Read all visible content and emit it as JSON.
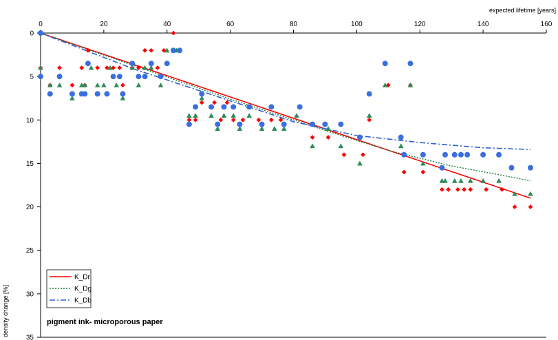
{
  "chart_data": {
    "type": "scatter",
    "title": "pigment ink- microporous paper",
    "xlabel": "expected lifetime [years]",
    "ylabel": "density change [%]",
    "xlim": [
      0,
      160
    ],
    "ylim": [
      0,
      35
    ],
    "y_inverted": true,
    "x_ticks": [
      0,
      20,
      40,
      60,
      80,
      100,
      120,
      140,
      160
    ],
    "y_ticks": [
      0,
      5,
      10,
      15,
      20,
      25,
      30,
      35
    ],
    "x_axis_position": "top",
    "grid": false,
    "legend_position": "bottom-left",
    "series": [
      {
        "name": "K_Dr",
        "marker": "diamond",
        "color": "#ff0000",
        "points": [
          [
            0,
            0
          ],
          [
            0,
            4
          ],
          [
            3,
            6
          ],
          [
            6,
            4
          ],
          [
            10,
            6
          ],
          [
            13,
            4
          ],
          [
            14,
            6
          ],
          [
            15,
            2
          ],
          [
            18,
            4
          ],
          [
            21,
            4
          ],
          [
            23,
            4
          ],
          [
            25,
            4
          ],
          [
            26,
            6
          ],
          [
            29,
            4
          ],
          [
            31,
            4
          ],
          [
            33,
            2
          ],
          [
            35,
            2
          ],
          [
            37,
            4
          ],
          [
            39,
            2
          ],
          [
            42,
            0
          ],
          [
            47,
            10
          ],
          [
            49,
            10
          ],
          [
            51,
            8
          ],
          [
            55,
            8
          ],
          [
            57,
            10
          ],
          [
            59,
            8
          ],
          [
            61,
            10
          ],
          [
            64,
            10
          ],
          [
            69,
            10
          ],
          [
            73,
            10
          ],
          [
            76,
            10
          ],
          [
            86,
            12
          ],
          [
            91,
            12
          ],
          [
            96,
            14
          ],
          [
            102,
            14
          ],
          [
            104,
            10
          ],
          [
            110,
            6
          ],
          [
            115,
            16
          ],
          [
            117,
            6
          ],
          [
            121,
            16
          ],
          [
            127,
            18
          ],
          [
            129,
            18
          ],
          [
            132,
            18
          ],
          [
            134,
            18
          ],
          [
            136,
            18
          ],
          [
            141,
            18
          ],
          [
            146,
            18
          ],
          [
            150,
            20
          ],
          [
            155,
            20
          ]
        ]
      },
      {
        "name": "K_Dg",
        "marker": "triangle",
        "color": "#2e8b57",
        "points": [
          [
            0,
            4
          ],
          [
            3,
            6
          ],
          [
            6,
            6
          ],
          [
            10,
            7.5
          ],
          [
            13,
            6
          ],
          [
            14,
            6
          ],
          [
            16,
            4
          ],
          [
            18,
            6
          ],
          [
            20,
            6
          ],
          [
            22,
            4
          ],
          [
            24,
            6
          ],
          [
            26,
            7.5
          ],
          [
            29,
            4
          ],
          [
            31,
            6
          ],
          [
            33,
            4
          ],
          [
            35,
            4
          ],
          [
            38,
            6
          ],
          [
            40,
            2
          ],
          [
            43,
            2
          ],
          [
            47,
            9.5
          ],
          [
            49,
            9.5
          ],
          [
            51,
            7.5
          ],
          [
            54,
            9.5
          ],
          [
            56,
            11
          ],
          [
            58,
            9.5
          ],
          [
            61,
            9.5
          ],
          [
            63,
            11
          ],
          [
            66,
            9.5
          ],
          [
            70,
            11
          ],
          [
            74,
            11
          ],
          [
            77,
            11
          ],
          [
            81,
            9.5
          ],
          [
            86,
            13
          ],
          [
            91,
            11
          ],
          [
            95,
            13
          ],
          [
            101,
            15
          ],
          [
            104,
            9.5
          ],
          [
            109,
            6
          ],
          [
            114,
            13
          ],
          [
            117,
            6
          ],
          [
            121,
            15
          ],
          [
            127,
            17
          ],
          [
            128,
            17
          ],
          [
            131,
            17
          ],
          [
            133,
            17
          ],
          [
            136,
            17
          ],
          [
            140,
            17
          ],
          [
            145,
            17
          ],
          [
            150,
            18.5
          ],
          [
            155,
            18.5
          ]
        ]
      },
      {
        "name": "K_Db",
        "marker": "circle",
        "color": "#3a6fe0",
        "points": [
          [
            0,
            0
          ],
          [
            0,
            5
          ],
          [
            3,
            7
          ],
          [
            6,
            5
          ],
          [
            10,
            7
          ],
          [
            13,
            7
          ],
          [
            14,
            7
          ],
          [
            15,
            3.5
          ],
          [
            18,
            7
          ],
          [
            21,
            7
          ],
          [
            23,
            5
          ],
          [
            25,
            5
          ],
          [
            26,
            7
          ],
          [
            29,
            3.5
          ],
          [
            31,
            5
          ],
          [
            33,
            5
          ],
          [
            35,
            3.5
          ],
          [
            38,
            5
          ],
          [
            40,
            3.5
          ],
          [
            42,
            2
          ],
          [
            44,
            2
          ],
          [
            47,
            10.5
          ],
          [
            49,
            8.5
          ],
          [
            51,
            7
          ],
          [
            54,
            8.5
          ],
          [
            56,
            10.5
          ],
          [
            58,
            8.5
          ],
          [
            61,
            8.5
          ],
          [
            63,
            10.5
          ],
          [
            66,
            8.5
          ],
          [
            70,
            10.5
          ],
          [
            73,
            8.5
          ],
          [
            77,
            10.5
          ],
          [
            82,
            8.5
          ],
          [
            86,
            10.5
          ],
          [
            90,
            10.5
          ],
          [
            95,
            10.5
          ],
          [
            101,
            12
          ],
          [
            104,
            7
          ],
          [
            109,
            3.5
          ],
          [
            114,
            12
          ],
          [
            115,
            14
          ],
          [
            117,
            3.5
          ],
          [
            121,
            14
          ],
          [
            127,
            15.5
          ],
          [
            128,
            14
          ],
          [
            131,
            14
          ],
          [
            133,
            14
          ],
          [
            135,
            14
          ],
          [
            140,
            14
          ],
          [
            145,
            14
          ],
          [
            149,
            15.5
          ],
          [
            155,
            15.5
          ]
        ]
      }
    ],
    "trend_lines": [
      {
        "name": "K_Dr",
        "style": "solid",
        "color": "#ff0000",
        "width": 1.6,
        "points": [
          [
            0,
            0
          ],
          [
            155,
            19
          ]
        ]
      },
      {
        "name": "K_Dg",
        "style": "dotted",
        "color": "#1f7a3a",
        "width": 1.4,
        "points": [
          [
            0,
            0
          ],
          [
            30,
            3.8
          ],
          [
            60,
            7.6
          ],
          [
            90,
            11.2
          ],
          [
            110,
            13.5
          ],
          [
            130,
            15.3
          ],
          [
            145,
            16.3
          ],
          [
            155,
            17
          ]
        ]
      },
      {
        "name": "K_Db",
        "style": "dashdot",
        "color": "#2f5fd0",
        "width": 1.6,
        "points": [
          [
            0,
            0
          ],
          [
            30,
            4.2
          ],
          [
            60,
            7.8
          ],
          [
            80,
            10.2
          ],
          [
            100,
            11.8
          ],
          [
            120,
            12.6
          ],
          [
            140,
            13.2
          ],
          [
            155,
            13.4
          ]
        ]
      }
    ]
  }
}
